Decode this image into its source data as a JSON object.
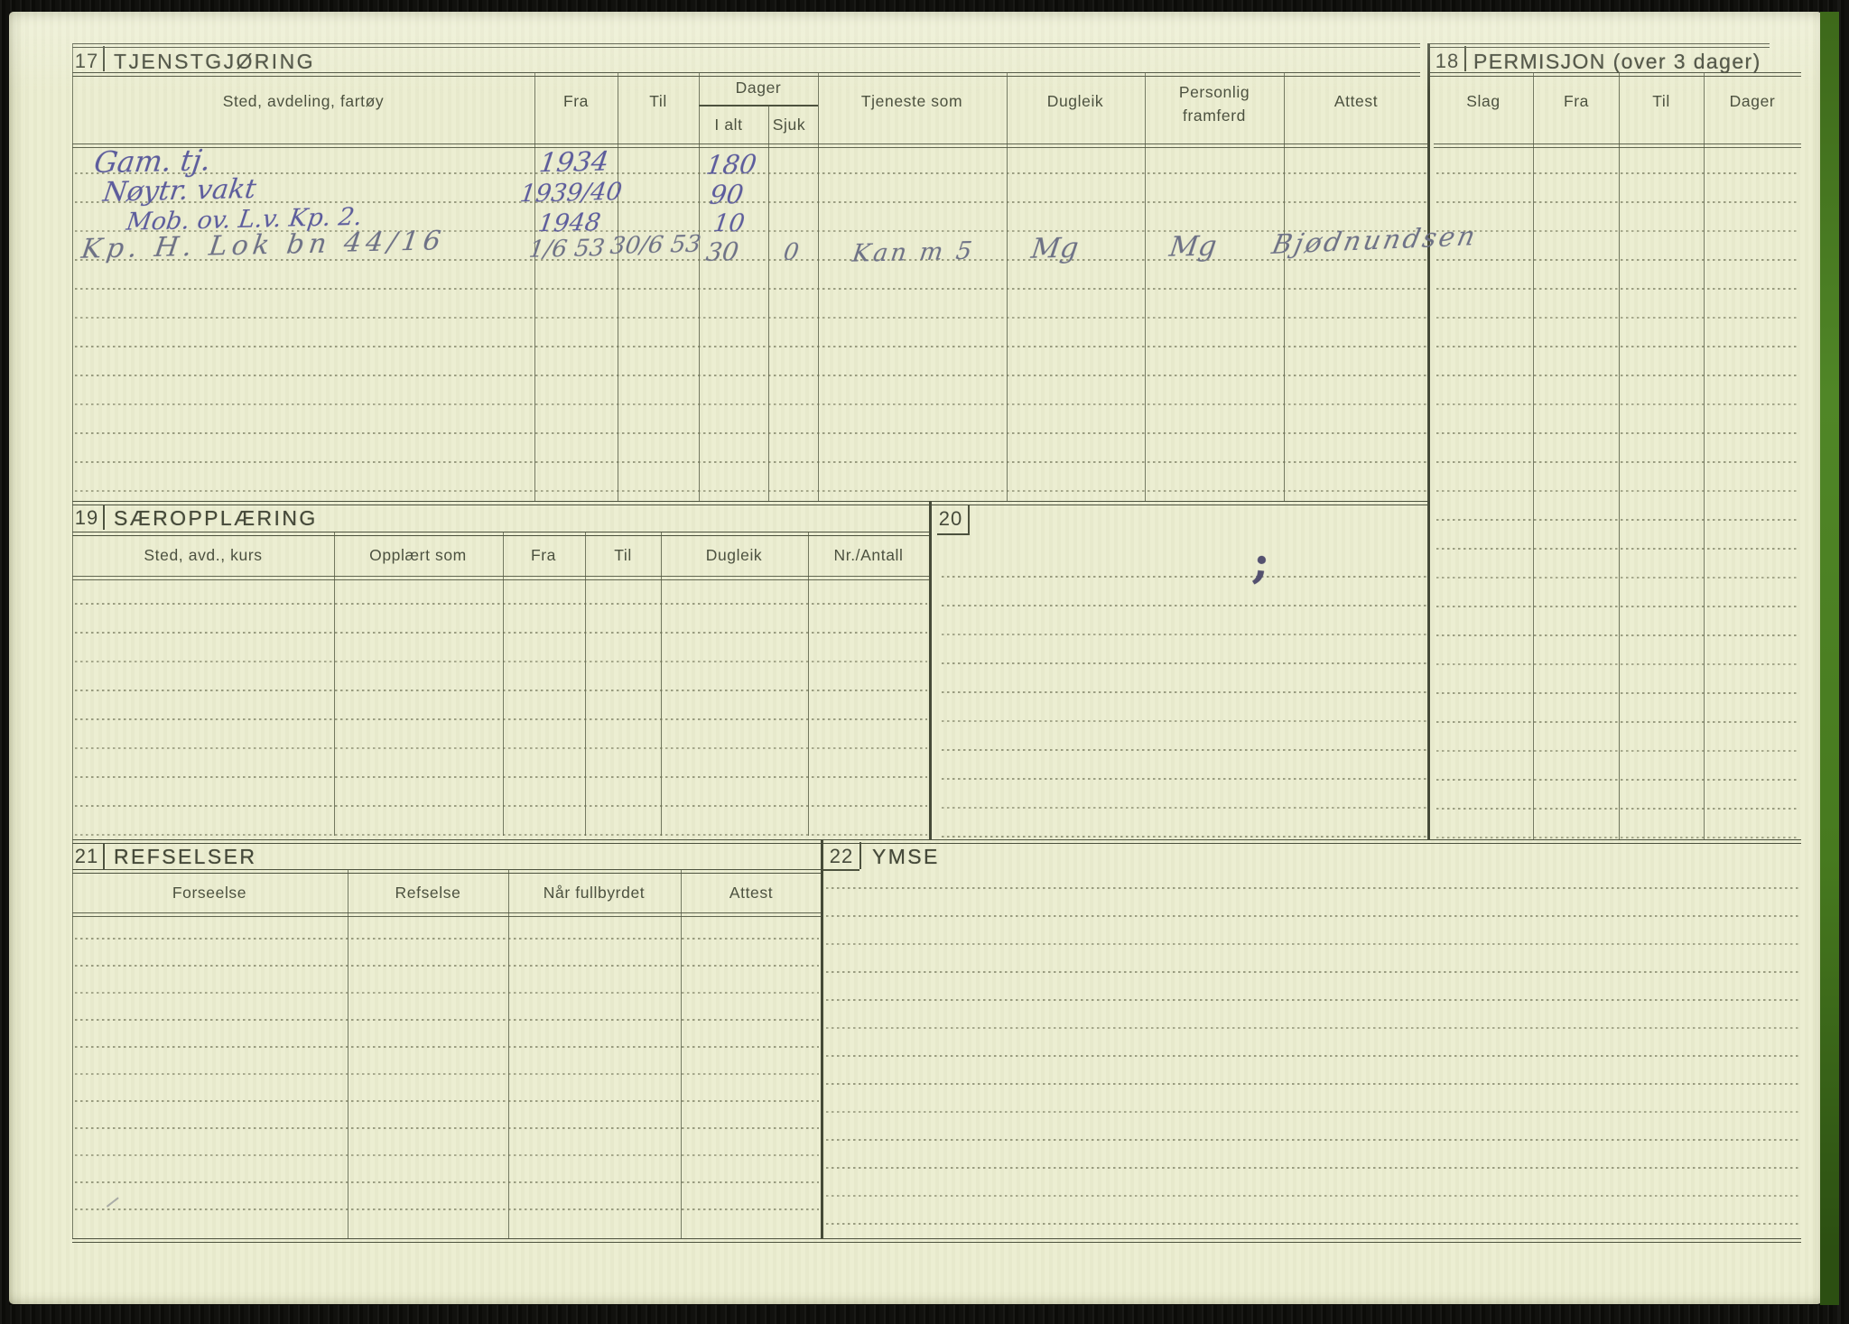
{
  "s17": {
    "number": "17",
    "title": "TJENSTGJØRING",
    "headers": {
      "sted": "Sted, avdeling, fartøy",
      "fra": "Fra",
      "til": "Til",
      "dager": "Dager",
      "ialt": "I alt",
      "sjuk": "Sjuk",
      "tjeneste": "Tjeneste som",
      "dugleik": "Dugleik",
      "personlig": "Personlig framferd",
      "attest": "Attest"
    },
    "entries": [
      {
        "sted": "Gam. tj.",
        "fra": "1934",
        "ialt": "180"
      },
      {
        "sted": "Nøytr. vakt",
        "fra": "1939/40",
        "ialt": "90"
      },
      {
        "sted": "Mob. ov. L.v. Kp. 2.",
        "fra": "1948",
        "ialt": "10"
      },
      {
        "sted": "Kp. H. Lok bn  44/16",
        "fra": "1/6 53",
        "til": "30/6 53",
        "ialt": "30",
        "sjuk": "0",
        "tjeneste": "Kan m 5",
        "dugleik": "Mg",
        "personlig": "Mg",
        "attest": "Bjødnundsen"
      }
    ]
  },
  "s18": {
    "number": "18",
    "title": "PERMISJON (over 3 dager)",
    "headers": {
      "slag": "Slag",
      "fra": "Fra",
      "til": "Til",
      "dager": "Dager"
    }
  },
  "s19": {
    "number": "19",
    "title": "SÆROPPLÆRING",
    "headers": {
      "sted": "Sted, avd., kurs",
      "opplaert": "Opplært som",
      "fra": "Fra",
      "til": "Til",
      "dugleik": "Dugleik",
      "nr": "Nr./Antall"
    }
  },
  "s20": {
    "number": "20",
    "ink_mark": ";"
  },
  "s21": {
    "number": "21",
    "title": "REFSELSER",
    "headers": {
      "forseelse": "Forseelse",
      "refselse": "Refselse",
      "naar": "Når fullbyrdet",
      "attest": "Attest"
    }
  },
  "s22": {
    "number": "22",
    "title": "YMSE"
  }
}
